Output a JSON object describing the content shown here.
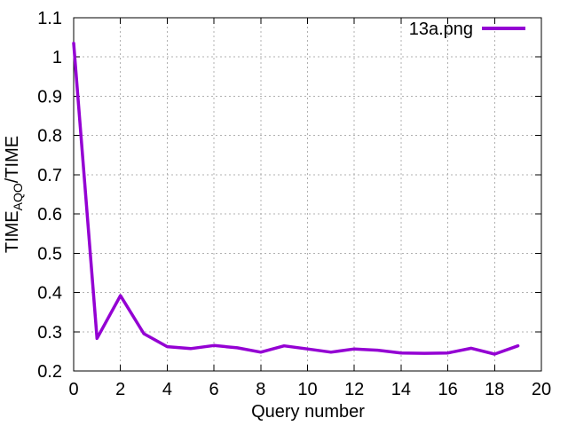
{
  "page": {
    "background": "#ffffff"
  },
  "chart_data": {
    "type": "line",
    "title": "",
    "xlabel": "Query number",
    "ylabel": "TIME_AQO/TIME",
    "ylabel_parts": {
      "main": "TIME",
      "sub": "AQO",
      "rest": "/TIME"
    },
    "xlim": [
      0,
      20
    ],
    "ylim": [
      0.2,
      1.1
    ],
    "xticks": {
      "values": [
        0,
        2,
        4,
        6,
        8,
        10,
        12,
        14,
        16,
        18,
        20
      ],
      "labels": [
        "0",
        "2",
        "4",
        "6",
        "8",
        "10",
        "12",
        "14",
        "16",
        "18",
        "20"
      ]
    },
    "yticks": {
      "values": [
        0.2,
        0.3,
        0.4,
        0.5,
        0.6,
        0.7,
        0.8,
        0.9,
        1.0,
        1.1
      ],
      "labels": [
        "0.2",
        "0.3",
        "0.4",
        "0.5",
        "0.6",
        "0.7",
        "0.8",
        "0.9",
        "1",
        "1.1"
      ]
    },
    "grid": true,
    "legend": {
      "label": "13a.png",
      "position": "top-right-inside"
    },
    "colors": {
      "line": "#9400D3",
      "grid": "#b0b0b0",
      "axis": "#000000",
      "text": "#000000"
    },
    "series": [
      {
        "name": "13a.png",
        "color": "#9400D3",
        "x": [
          0,
          1,
          2,
          3,
          4,
          5,
          6,
          7,
          8,
          9,
          10,
          11,
          12,
          13,
          14,
          15,
          16,
          17,
          18,
          19
        ],
        "y": [
          1.035,
          0.283,
          0.392,
          0.295,
          0.262,
          0.257,
          0.265,
          0.259,
          0.248,
          0.264,
          0.256,
          0.248,
          0.256,
          0.253,
          0.246,
          0.245,
          0.246,
          0.258,
          0.243,
          0.264
        ]
      }
    ]
  }
}
